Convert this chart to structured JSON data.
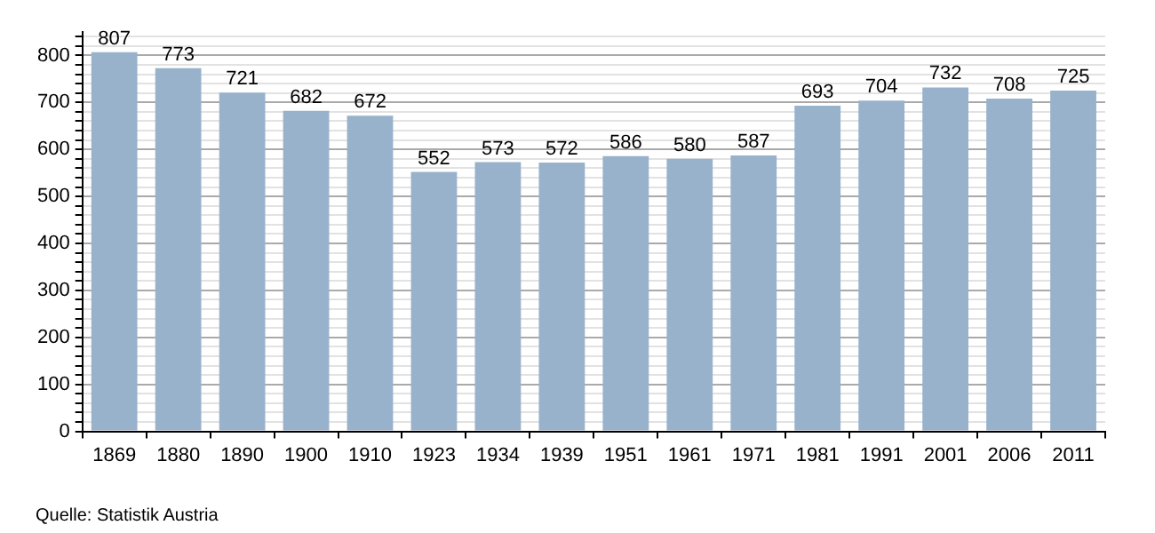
{
  "chart_data": {
    "type": "bar",
    "categories": [
      "1869",
      "1880",
      "1890",
      "1900",
      "1910",
      "1923",
      "1934",
      "1939",
      "1951",
      "1961",
      "1971",
      "1981",
      "1991",
      "2001",
      "2006",
      "2011"
    ],
    "values": [
      807,
      773,
      721,
      682,
      672,
      552,
      573,
      572,
      586,
      580,
      587,
      693,
      704,
      732,
      708,
      725
    ],
    "color": "#98b2cc",
    "ylim": [
      0,
      850
    ],
    "yticks": [
      0,
      {
        "value": 20,
        "label": null
      },
      {
        "value": 40,
        "label": null
      },
      {
        "value": 60,
        "label": null
      },
      {
        "value": 80,
        "label": null
      },
      100,
      {
        "value": 120,
        "label": null
      },
      {
        "value": 140,
        "label": null
      },
      {
        "value": 160,
        "label": null
      },
      {
        "value": 180,
        "label": null
      },
      200,
      {
        "value": 220,
        "label": null
      },
      {
        "value": 240,
        "label": null
      },
      {
        "value": 260,
        "label": null
      },
      {
        "value": 280,
        "label": null
      },
      300,
      {
        "value": 320,
        "label": null
      },
      {
        "value": 340,
        "label": null
      },
      {
        "value": 360,
        "label": null
      },
      {
        "value": 380,
        "label": null
      },
      400,
      {
        "value": 420,
        "label": null
      },
      {
        "value": 440,
        "label": null
      },
      {
        "value": 460,
        "label": null
      },
      {
        "value": 480,
        "label": null
      },
      500,
      {
        "value": 520,
        "label": null
      },
      {
        "value": 540,
        "label": null
      },
      {
        "value": 560,
        "label": null
      },
      {
        "value": 580,
        "label": null
      },
      600,
      {
        "value": 620,
        "label": null
      },
      {
        "value": 640,
        "label": null
      },
      {
        "value": 660,
        "label": null
      },
      {
        "value": 680,
        "label": null
      },
      700,
      {
        "value": 720,
        "label": null
      },
      {
        "value": 740,
        "label": null
      },
      {
        "value": 760,
        "label": null
      },
      {
        "value": 780,
        "label": null
      },
      800,
      {
        "value": 820,
        "label": null
      },
      {
        "value": 840,
        "label": null
      }
    ],
    "grid": true,
    "legend": false,
    "data_labels": true,
    "annotations": [
      "Quelle: Statistik Austria"
    ]
  }
}
